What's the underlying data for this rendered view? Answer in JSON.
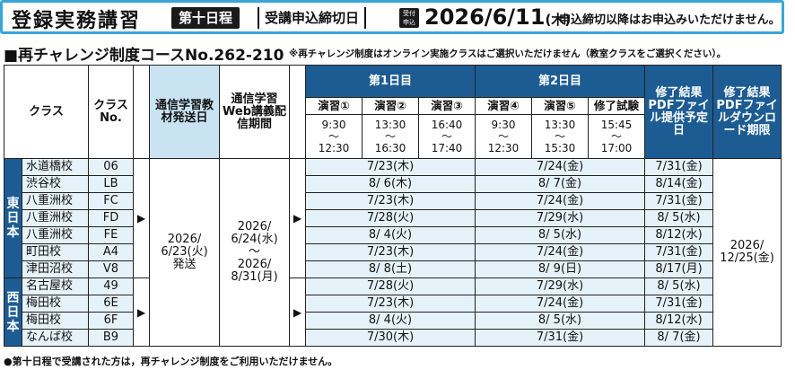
{
  "header": {
    "title": "登録実務講習",
    "badge": "第十日程",
    "deadline_label": "受講申込締切日",
    "calendar_icon_text": [
      "受付",
      "申込"
    ],
    "deadline_date": "2026/6/11",
    "deadline_weekday": "(木)",
    "deadline_note": "申込締切以降はお申込みいただけません。"
  },
  "subtitle": "■再チャレンジ制度コースNo.262-210",
  "subtitle_note": "※再チャレンジ制度はオンライン実施クラスはご選択いただけません（教室クラスをご選択ください）。",
  "table": {
    "col_class": "クラス",
    "col_class_no": "クラスNo.",
    "col_ship_date": "通信学習教材発送日",
    "col_web_period": "通信学習Web講義配信期間",
    "day1": "第1日目",
    "day2": "第2日目",
    "col_pdf_date": "修了結果PDFファイル提供予定日",
    "col_pdf_dl": "修了結果PDFファイルダウンロード期限",
    "sessions": [
      {
        "name": "演習①",
        "start": "9:30",
        "tilde": "〜",
        "end": "12:30"
      },
      {
        "name": "演習②",
        "start": "13:30",
        "tilde": "〜",
        "end": "16:30"
      },
      {
        "name": "演習③",
        "start": "16:40",
        "tilde": "〜",
        "end": "17:40"
      },
      {
        "name": "演習④",
        "start": "9:30",
        "tilde": "〜",
        "end": "12:30"
      },
      {
        "name": "演習⑤",
        "start": "13:30",
        "tilde": "〜",
        "end": "15:30"
      },
      {
        "name": "修了試験",
        "start": "15:45",
        "tilde": "〜",
        "end": "17:00"
      }
    ],
    "ship_date": [
      "2026/",
      "6/23(火)",
      "発送"
    ],
    "web_period": [
      "2026/",
      "6/24(水)",
      "〜",
      "2026/",
      "8/31(月)"
    ],
    "dl_deadline": [
      "2026/",
      "12/25(金)"
    ],
    "regions": [
      {
        "name": "東日本",
        "rows": [
          {
            "school": "水道橋校",
            "no": "06",
            "day1": "7/23(木)",
            "day2": "7/24(金)",
            "pdf": "7/31(金)"
          },
          {
            "school": "渋谷校",
            "no": "LB",
            "day1": "8/ 6(木)",
            "day2": "8/ 7(金)",
            "pdf": "8/14(金)"
          },
          {
            "school": "八重洲校",
            "no": "FC",
            "day1": "7/23(木)",
            "day2": "7/24(金)",
            "pdf": "7/31(金)"
          },
          {
            "school": "八重洲校",
            "no": "FD",
            "day1": "7/28(火)",
            "day2": "7/29(水)",
            "pdf": "8/ 5(水)"
          },
          {
            "school": "八重洲校",
            "no": "FE",
            "day1": "8/ 4(火)",
            "day2": "8/ 5(水)",
            "pdf": "8/12(水)"
          },
          {
            "school": "町田校",
            "no": "A4",
            "day1": "7/23(木)",
            "day2": "7/24(金)",
            "pdf": "7/31(金)"
          },
          {
            "school": "津田沼校",
            "no": "V8",
            "day1": "8/ 8(土)",
            "day2": "8/ 9(日)",
            "pdf": "8/17(月)"
          }
        ]
      },
      {
        "name": "西日本",
        "rows": [
          {
            "school": "名古屋校",
            "no": "49",
            "day1": "7/28(火)",
            "day2": "7/29(水)",
            "pdf": "8/ 5(水)"
          },
          {
            "school": "梅田校",
            "no": "6E",
            "day1": "7/23(木)",
            "day2": "7/24(金)",
            "pdf": "7/31(金)"
          },
          {
            "school": "梅田校",
            "no": "6F",
            "day1": "8/ 4(火)",
            "day2": "8/ 5(水)",
            "pdf": "8/12(水)"
          },
          {
            "school": "なんば校",
            "no": "B9",
            "day1": "7/30(木)",
            "day2": "7/31(金)",
            "pdf": "8/ 7(金)"
          }
        ]
      }
    ]
  },
  "footnote": "●第十日程で受講された方は，再チャレンジ制度をご利用いただけません。"
}
